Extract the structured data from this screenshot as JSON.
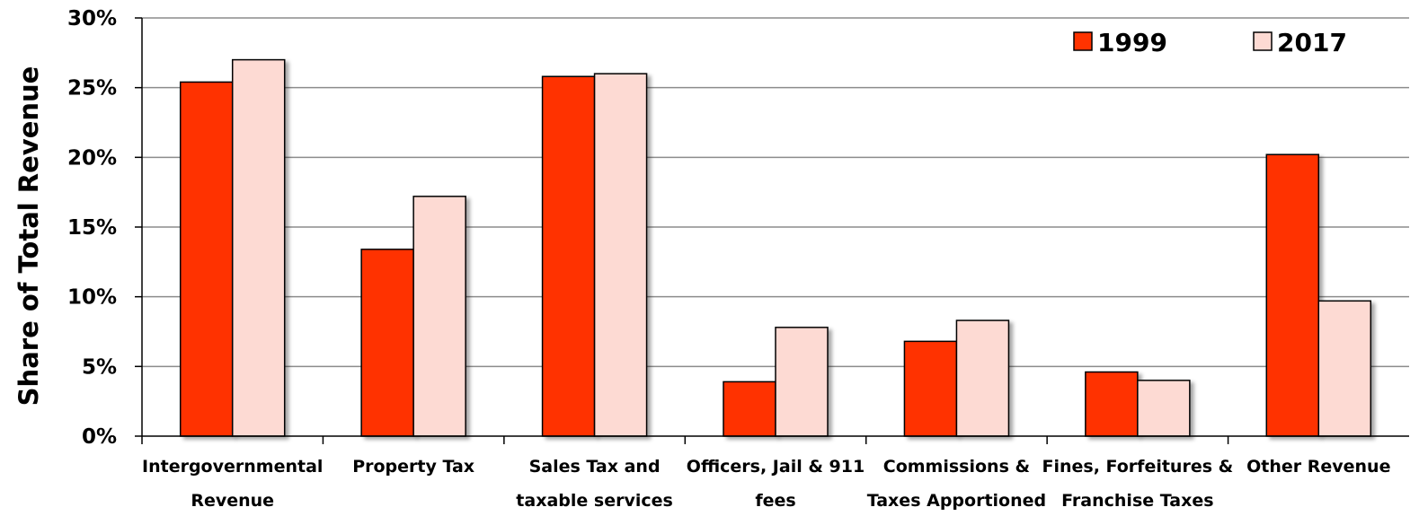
{
  "chart_data": {
    "type": "bar",
    "title": "",
    "xlabel": "",
    "ylabel": "Share of Total Revenue",
    "ylim": [
      0,
      30
    ],
    "yticks": [
      "0%",
      "5%",
      "10%",
      "15%",
      "20%",
      "25%",
      "30%"
    ],
    "yticks_values": [
      0,
      5,
      10,
      15,
      20,
      25,
      30
    ],
    "grid": true,
    "legend_position": "top-right",
    "categories": [
      [
        "Intergovernmental",
        "Revenue"
      ],
      [
        "Property Tax"
      ],
      [
        "Sales Tax and",
        "taxable services"
      ],
      [
        "Officers, Jail & 911",
        "fees"
      ],
      [
        "Commissions &",
        "Taxes Apportioned"
      ],
      [
        "Fines, Forfeitures &",
        "Franchise Taxes"
      ],
      [
        "Other Revenue"
      ]
    ],
    "series": [
      {
        "name": "1999",
        "color": "#FF3300",
        "values": [
          25.4,
          13.4,
          25.8,
          3.9,
          6.8,
          4.6,
          20.2
        ]
      },
      {
        "name": "2017",
        "color": "#FDDAD3",
        "values": [
          27.0,
          17.2,
          26.0,
          7.8,
          8.3,
          4.0,
          9.7
        ]
      }
    ]
  }
}
